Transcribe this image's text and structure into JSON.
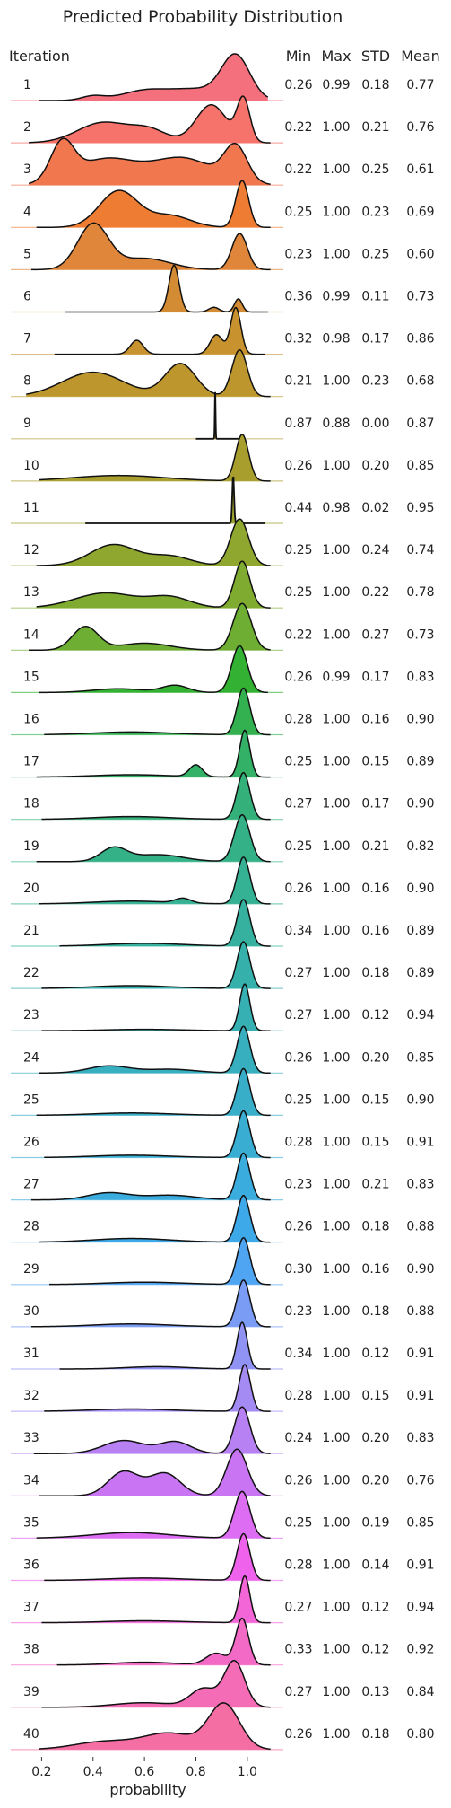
{
  "chart_data": {
    "type": "ridgeline",
    "title": "Predicted Probability Distribution",
    "xlabel": "probability",
    "row_header": "Iteration",
    "stat_headers": [
      "Min",
      "Max",
      "STD",
      "Mean"
    ],
    "x_ticks": [
      0.2,
      0.4,
      0.6,
      0.8,
      1.0
    ],
    "x_tick_labels": [
      "0.2",
      "0.4",
      "0.6",
      "0.8",
      "1.0"
    ],
    "xlim": [
      0.08,
      1.14
    ],
    "rows": [
      {
        "label": "1",
        "min": "0.26",
        "max": "0.99",
        "std": "0.18",
        "mean": "0.77",
        "color": "#f5707d",
        "peaks": [
          [
            0.4,
            0.045,
            0.1
          ],
          [
            0.6,
            0.09,
            0.22
          ],
          [
            0.8,
            0.1,
            0.25
          ],
          [
            0.955,
            0.055,
            1.0
          ]
        ]
      },
      {
        "label": "2",
        "min": "0.22",
        "max": "1.00",
        "std": "0.21",
        "mean": "0.76",
        "color": "#f5736a",
        "peaks": [
          [
            0.44,
            0.1,
            0.48
          ],
          [
            0.62,
            0.07,
            0.28
          ],
          [
            0.86,
            0.06,
            0.9
          ],
          [
            0.985,
            0.025,
            1.0
          ]
        ]
      },
      {
        "label": "3",
        "min": "0.22",
        "max": "1.00",
        "std": "0.25",
        "mean": "0.61",
        "color": "#f1774f",
        "peaks": [
          [
            0.28,
            0.045,
            1.0
          ],
          [
            0.45,
            0.12,
            0.7
          ],
          [
            0.75,
            0.12,
            0.72
          ],
          [
            0.955,
            0.045,
            0.96
          ]
        ]
      },
      {
        "label": "4",
        "min": "0.25",
        "max": "1.00",
        "std": "0.23",
        "mean": "0.69",
        "color": "#ee7c33",
        "peaks": [
          [
            0.5,
            0.075,
            0.78
          ],
          [
            0.7,
            0.08,
            0.25
          ],
          [
            0.98,
            0.025,
            1.0
          ]
        ]
      },
      {
        "label": "5",
        "min": "0.23",
        "max": "1.00",
        "std": "0.25",
        "mean": "0.60",
        "color": "#e0863a",
        "peaks": [
          [
            0.4,
            0.06,
            1.0
          ],
          [
            0.6,
            0.1,
            0.25
          ],
          [
            0.97,
            0.03,
            0.8
          ]
        ]
      },
      {
        "label": "6",
        "min": "0.36",
        "max": "0.99",
        "std": "0.11",
        "mean": "0.73",
        "color": "#d38c33",
        "peaks": [
          [
            0.715,
            0.02,
            1.0
          ],
          [
            0.87,
            0.02,
            0.1
          ],
          [
            0.965,
            0.015,
            0.28
          ]
        ]
      },
      {
        "label": "7",
        "min": "0.32",
        "max": "0.98",
        "std": "0.17",
        "mean": "0.86",
        "color": "#c8922e",
        "peaks": [
          [
            0.57,
            0.025,
            0.3
          ],
          [
            0.88,
            0.025,
            0.42
          ],
          [
            0.955,
            0.02,
            1.0
          ]
        ]
      },
      {
        "label": "8",
        "min": "0.21",
        "max": "1.00",
        "std": "0.23",
        "mean": "0.68",
        "color": "#bd972e",
        "peaks": [
          [
            0.4,
            0.12,
            0.52
          ],
          [
            0.74,
            0.06,
            0.7
          ],
          [
            0.97,
            0.03,
            1.0
          ]
        ]
      },
      {
        "label": "9",
        "min": "0.87",
        "max": "0.88",
        "std": "0.00",
        "mean": "0.87",
        "color": "#b39a2e",
        "peaks": [
          [
            0.875,
            0.0015,
            1.0
          ]
        ]
      },
      {
        "label": "10",
        "min": "0.26",
        "max": "1.00",
        "std": "0.20",
        "mean": "0.85",
        "color": "#a89e2e",
        "peaks": [
          [
            0.5,
            0.18,
            0.12
          ],
          [
            0.98,
            0.025,
            1.0
          ]
        ]
      },
      {
        "label": "11",
        "min": "0.44",
        "max": "0.98",
        "std": "0.02",
        "mean": "0.95",
        "color": "#9ea32e",
        "peaks": [
          [
            0.945,
            0.0035,
            1.0
          ]
        ]
      },
      {
        "label": "12",
        "min": "0.25",
        "max": "1.00",
        "std": "0.24",
        "mean": "0.74",
        "color": "#8fa72f",
        "peaks": [
          [
            0.48,
            0.09,
            0.45
          ],
          [
            0.7,
            0.08,
            0.2
          ],
          [
            0.97,
            0.035,
            1.0
          ]
        ]
      },
      {
        "label": "13",
        "min": "0.25",
        "max": "1.00",
        "std": "0.22",
        "mean": "0.78",
        "color": "#7fab31",
        "peaks": [
          [
            0.45,
            0.12,
            0.32
          ],
          [
            0.7,
            0.08,
            0.22
          ],
          [
            0.98,
            0.03,
            1.0
          ]
        ]
      },
      {
        "label": "14",
        "min": "0.22",
        "max": "1.00",
        "std": "0.27",
        "mean": "0.73",
        "color": "#6eae32",
        "peaks": [
          [
            0.37,
            0.05,
            0.5
          ],
          [
            0.6,
            0.1,
            0.15
          ],
          [
            0.98,
            0.035,
            1.0
          ]
        ]
      },
      {
        "label": "15",
        "min": "0.26",
        "max": "0.99",
        "std": "0.17",
        "mean": "0.83",
        "color": "#33b132",
        "peaks": [
          [
            0.5,
            0.1,
            0.08
          ],
          [
            0.72,
            0.05,
            0.15
          ],
          [
            0.97,
            0.03,
            1.0
          ]
        ]
      },
      {
        "label": "16",
        "min": "0.28",
        "max": "1.00",
        "std": "0.16",
        "mean": "0.90",
        "color": "#33b04f",
        "peaks": [
          [
            0.55,
            0.15,
            0.06
          ],
          [
            0.985,
            0.025,
            1.0
          ]
        ]
      },
      {
        "label": "17",
        "min": "0.25",
        "max": "1.00",
        "std": "0.15",
        "mean": "0.89",
        "color": "#33b167",
        "peaks": [
          [
            0.55,
            0.15,
            0.05
          ],
          [
            0.8,
            0.025,
            0.25
          ],
          [
            0.99,
            0.02,
            1.0
          ]
        ]
      },
      {
        "label": "18",
        "min": "0.27",
        "max": "1.00",
        "std": "0.17",
        "mean": "0.90",
        "color": "#34b17a",
        "peaks": [
          [
            0.55,
            0.15,
            0.06
          ],
          [
            0.985,
            0.025,
            1.0
          ]
        ]
      },
      {
        "label": "19",
        "min": "0.25",
        "max": "1.00",
        "std": "0.21",
        "mean": "0.82",
        "color": "#35b187",
        "peaks": [
          [
            0.48,
            0.05,
            0.28
          ],
          [
            0.65,
            0.1,
            0.15
          ],
          [
            0.98,
            0.03,
            1.0
          ]
        ]
      },
      {
        "label": "20",
        "min": "0.26",
        "max": "1.00",
        "std": "0.16",
        "mean": "0.90",
        "color": "#35b194",
        "peaks": [
          [
            0.55,
            0.15,
            0.06
          ],
          [
            0.75,
            0.03,
            0.1
          ],
          [
            0.985,
            0.025,
            1.0
          ]
        ]
      },
      {
        "label": "21",
        "min": "0.34",
        "max": "1.00",
        "std": "0.16",
        "mean": "0.89",
        "color": "#36b19f",
        "peaks": [
          [
            0.6,
            0.15,
            0.06
          ],
          [
            0.985,
            0.025,
            1.0
          ]
        ]
      },
      {
        "label": "22",
        "min": "0.27",
        "max": "1.00",
        "std": "0.18",
        "mean": "0.89",
        "color": "#36b0aa",
        "peaks": [
          [
            0.55,
            0.15,
            0.06
          ],
          [
            0.985,
            0.025,
            1.0
          ]
        ]
      },
      {
        "label": "23",
        "min": "0.27",
        "max": "1.00",
        "std": "0.12",
        "mean": "0.94",
        "color": "#37b0b4",
        "peaks": [
          [
            0.6,
            0.15,
            0.03
          ],
          [
            0.99,
            0.02,
            1.0
          ]
        ]
      },
      {
        "label": "24",
        "min": "0.26",
        "max": "1.00",
        "std": "0.20",
        "mean": "0.85",
        "color": "#38afbf",
        "peaks": [
          [
            0.46,
            0.08,
            0.15
          ],
          [
            0.7,
            0.1,
            0.08
          ],
          [
            0.985,
            0.025,
            1.0
          ]
        ]
      },
      {
        "label": "25",
        "min": "0.25",
        "max": "1.00",
        "std": "0.15",
        "mean": "0.90",
        "color": "#39aec9",
        "peaks": [
          [
            0.55,
            0.15,
            0.05
          ],
          [
            0.985,
            0.025,
            1.0
          ]
        ]
      },
      {
        "label": "26",
        "min": "0.28",
        "max": "1.00",
        "std": "0.15",
        "mean": "0.91",
        "color": "#3aadd3",
        "peaks": [
          [
            0.55,
            0.15,
            0.05
          ],
          [
            0.985,
            0.025,
            1.0
          ]
        ]
      },
      {
        "label": "27",
        "min": "0.23",
        "max": "1.00",
        "std": "0.21",
        "mean": "0.83",
        "color": "#3bacde",
        "peaks": [
          [
            0.46,
            0.08,
            0.15
          ],
          [
            0.7,
            0.1,
            0.1
          ],
          [
            0.985,
            0.025,
            1.0
          ]
        ]
      },
      {
        "label": "28",
        "min": "0.26",
        "max": "1.00",
        "std": "0.18",
        "mean": "0.88",
        "color": "#3ea9e8",
        "peaks": [
          [
            0.55,
            0.15,
            0.08
          ],
          [
            0.985,
            0.025,
            1.0
          ]
        ]
      },
      {
        "label": "29",
        "min": "0.30",
        "max": "1.00",
        "std": "0.16",
        "mean": "0.90",
        "color": "#4fa5f2",
        "peaks": [
          [
            0.6,
            0.15,
            0.05
          ],
          [
            0.985,
            0.025,
            1.0
          ]
        ]
      },
      {
        "label": "30",
        "min": "0.23",
        "max": "1.00",
        "std": "0.18",
        "mean": "0.88",
        "color": "#7a9cf4",
        "peaks": [
          [
            0.55,
            0.15,
            0.06
          ],
          [
            0.985,
            0.025,
            1.0
          ]
        ]
      },
      {
        "label": "31",
        "min": "0.34",
        "max": "1.00",
        "std": "0.12",
        "mean": "0.91",
        "color": "#9093f3",
        "peaks": [
          [
            0.65,
            0.12,
            0.05
          ],
          [
            0.98,
            0.02,
            1.0
          ]
        ]
      },
      {
        "label": "32",
        "min": "0.28",
        "max": "1.00",
        "std": "0.15",
        "mean": "0.91",
        "color": "#a48af3",
        "peaks": [
          [
            0.55,
            0.15,
            0.05
          ],
          [
            0.99,
            0.022,
            1.0
          ]
        ]
      },
      {
        "label": "33",
        "min": "0.24",
        "max": "1.00",
        "std": "0.20",
        "mean": "0.83",
        "color": "#b780f3",
        "peaks": [
          [
            0.52,
            0.08,
            0.28
          ],
          [
            0.72,
            0.06,
            0.25
          ],
          [
            0.98,
            0.03,
            1.0
          ]
        ]
      },
      {
        "label": "34",
        "min": "0.26",
        "max": "1.00",
        "std": "0.20",
        "mean": "0.76",
        "color": "#c975f3",
        "peaks": [
          [
            0.52,
            0.06,
            0.52
          ],
          [
            0.68,
            0.06,
            0.48
          ],
          [
            0.96,
            0.04,
            1.0
          ]
        ]
      },
      {
        "label": "35",
        "min": "0.25",
        "max": "1.00",
        "std": "0.19",
        "mean": "0.85",
        "color": "#dd6df2",
        "peaks": [
          [
            0.55,
            0.15,
            0.12
          ],
          [
            0.98,
            0.03,
            1.0
          ]
        ]
      },
      {
        "label": "36",
        "min": "0.28",
        "max": "1.00",
        "std": "0.14",
        "mean": "0.91",
        "color": "#ef63ec",
        "peaks": [
          [
            0.6,
            0.15,
            0.05
          ],
          [
            0.985,
            0.025,
            1.0
          ]
        ]
      },
      {
        "label": "37",
        "min": "0.27",
        "max": "1.00",
        "std": "0.12",
        "mean": "0.94",
        "color": "#f366d8",
        "peaks": [
          [
            0.6,
            0.15,
            0.04
          ],
          [
            0.99,
            0.02,
            1.0
          ]
        ]
      },
      {
        "label": "38",
        "min": "0.33",
        "max": "1.00",
        "std": "0.12",
        "mean": "0.92",
        "color": "#f26ac6",
        "peaks": [
          [
            0.6,
            0.12,
            0.06
          ],
          [
            0.88,
            0.04,
            0.25
          ],
          [
            0.98,
            0.025,
            1.0
          ]
        ]
      },
      {
        "label": "39",
        "min": "0.27",
        "max": "1.00",
        "std": "0.13",
        "mean": "0.84",
        "color": "#f36cb5",
        "peaks": [
          [
            0.6,
            0.12,
            0.1
          ],
          [
            0.83,
            0.05,
            0.4
          ],
          [
            0.95,
            0.04,
            1.0
          ]
        ]
      },
      {
        "label": "40",
        "min": "0.26",
        "max": "1.00",
        "std": "0.18",
        "mean": "0.80",
        "color": "#f46ea3",
        "peaks": [
          [
            0.45,
            0.12,
            0.18
          ],
          [
            0.7,
            0.1,
            0.35
          ],
          [
            0.91,
            0.06,
            1.0
          ]
        ]
      }
    ]
  }
}
